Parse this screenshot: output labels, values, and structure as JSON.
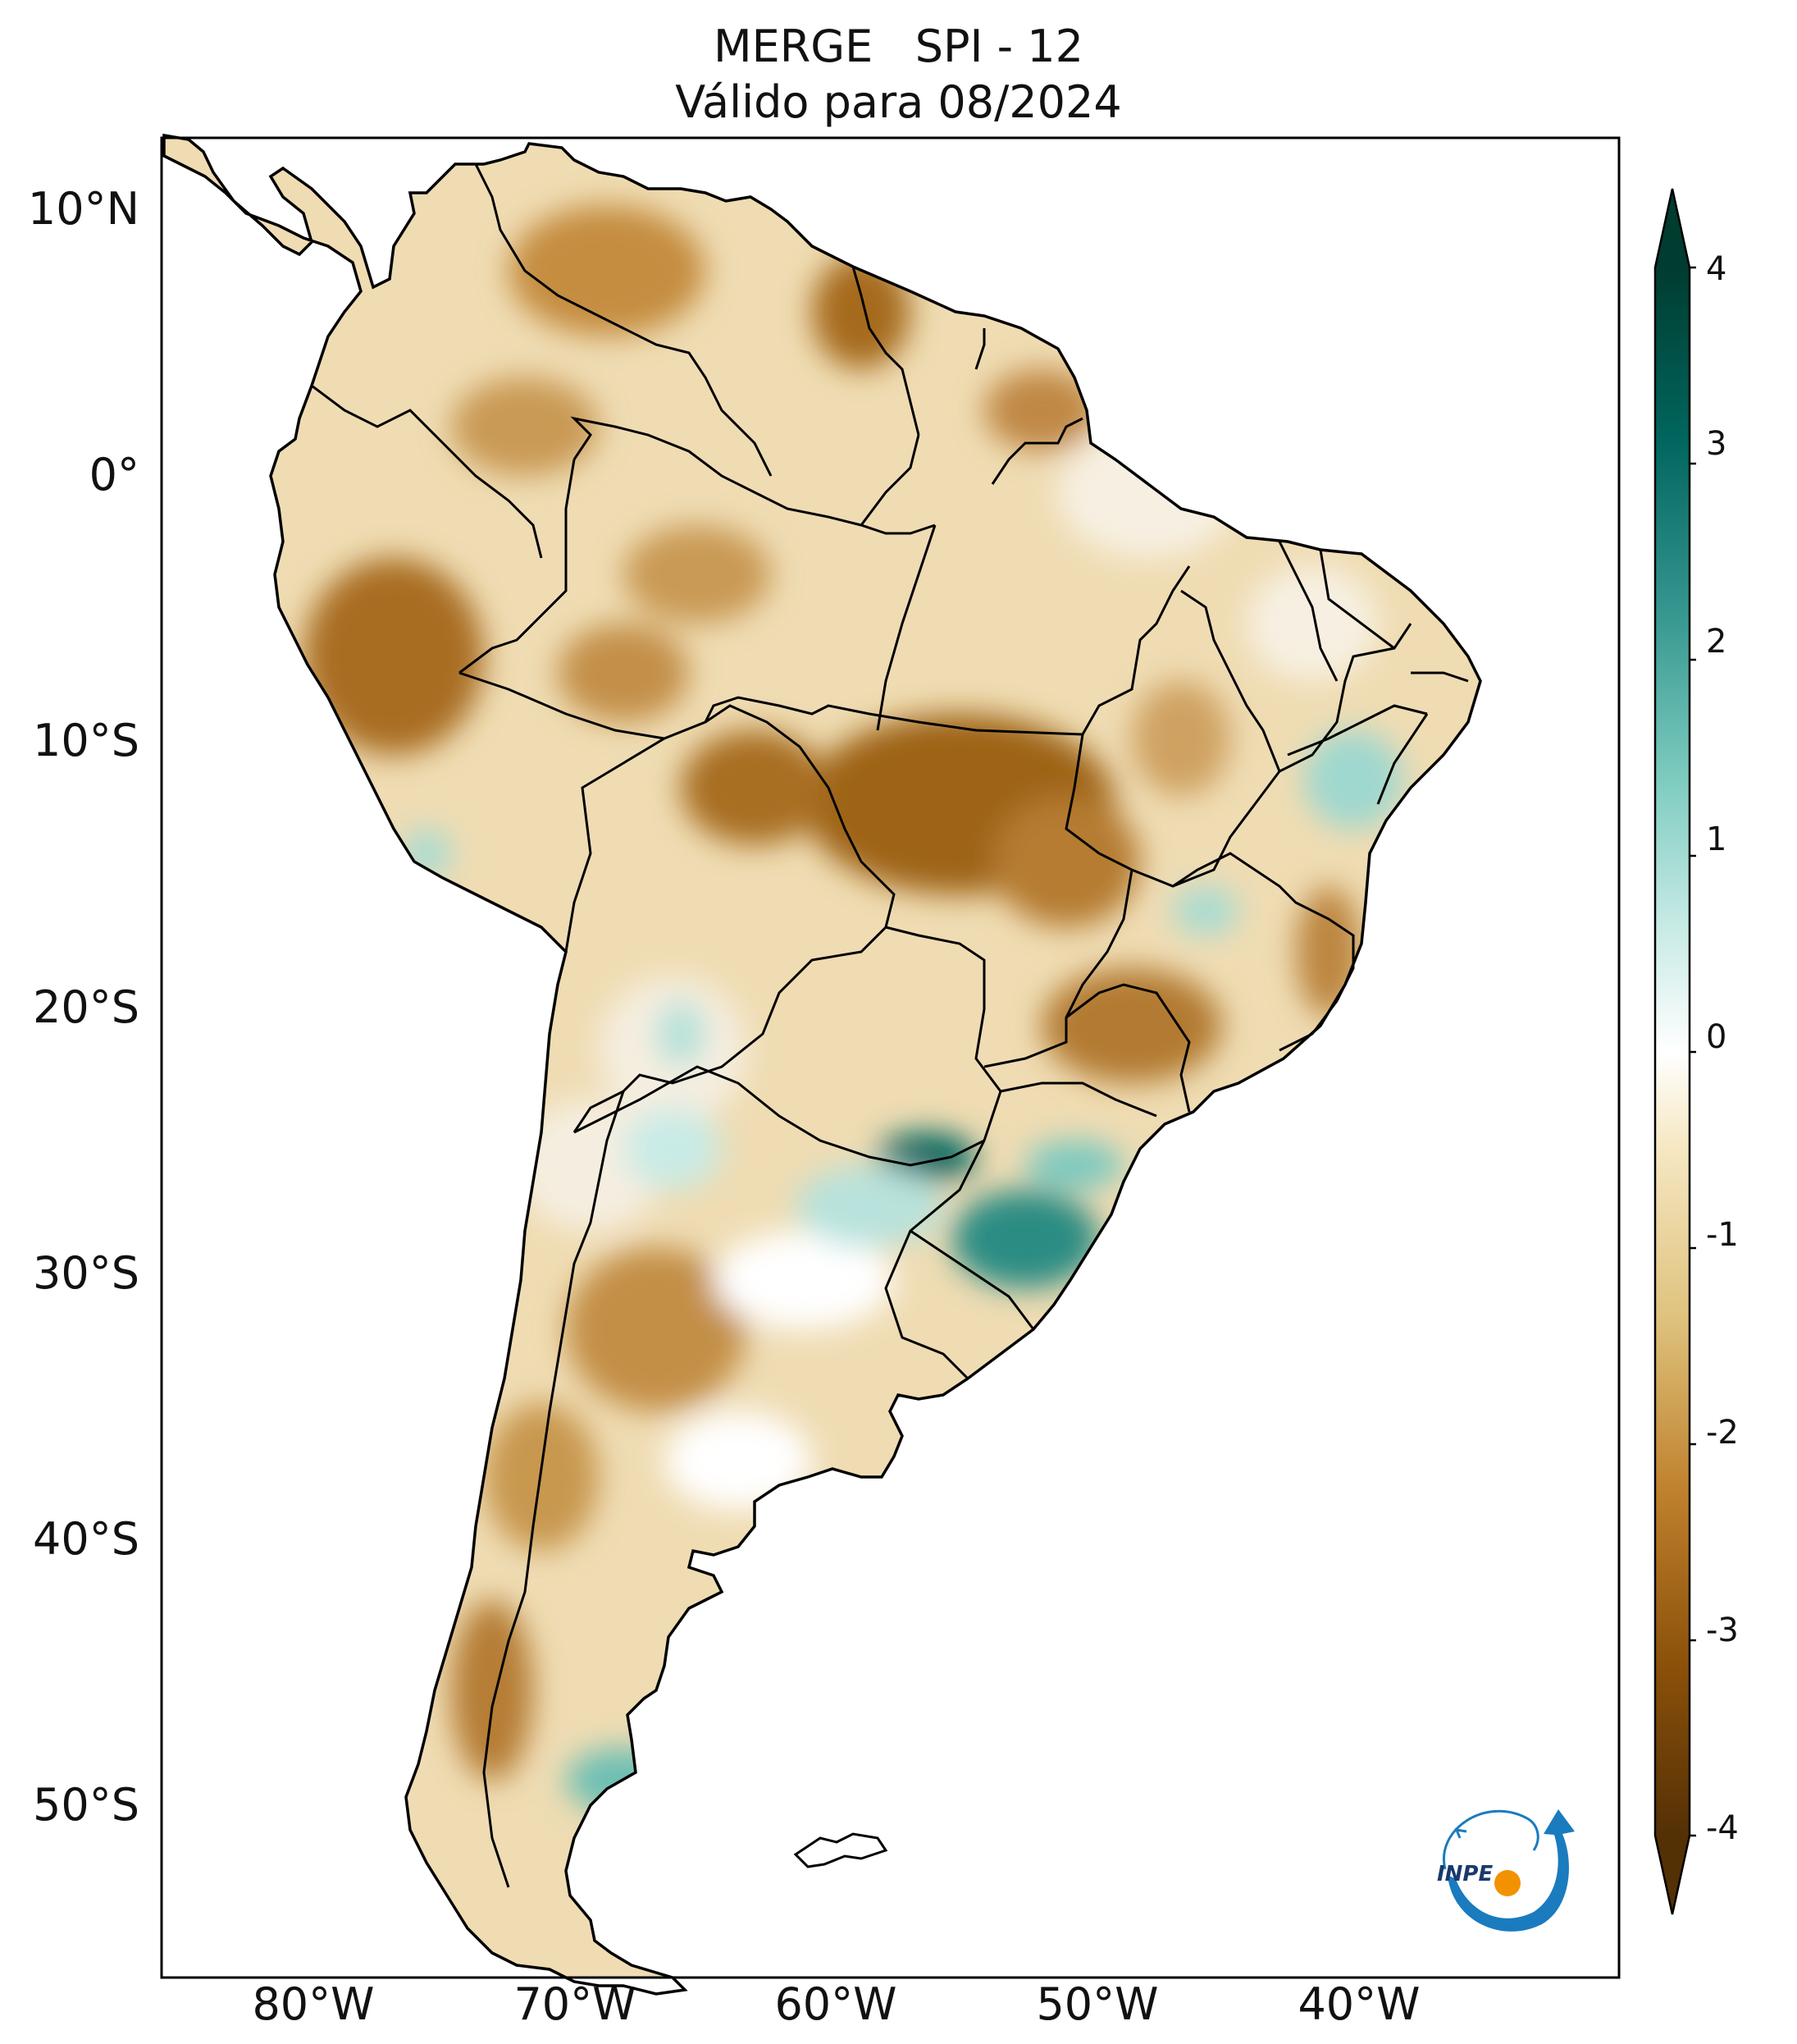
{
  "title": {
    "line1": "MERGE   SPI - 12",
    "line2": "Válido para 08/2024"
  },
  "map": {
    "region": "South America",
    "lat_range": [
      -56,
      12.5
    ],
    "lon_range": [
      -85,
      -30
    ],
    "latitude_ticks": [
      "10°N",
      "0°",
      "10°S",
      "20°S",
      "30°S",
      "40°S",
      "50°S"
    ],
    "longitude_ticks": [
      "80°W",
      "70°W",
      "60°W",
      "50°W",
      "40°W"
    ]
  },
  "colorbar": {
    "ticks": [
      "4",
      "3",
      "2",
      "1",
      "0",
      "-1",
      "-2",
      "-3",
      "-4"
    ],
    "colormap": [
      "#543005",
      "#8c510a",
      "#bf812d",
      "#dfc27d",
      "#f6e8c3",
      "#ffffff",
      "#c7eae5",
      "#80cdc1",
      "#35978f",
      "#01665e",
      "#003c30"
    ],
    "extend": "both"
  },
  "logo": {
    "text": "INPE",
    "arrow_color": "#1a7bbf",
    "dot_color": "#f39200"
  }
}
